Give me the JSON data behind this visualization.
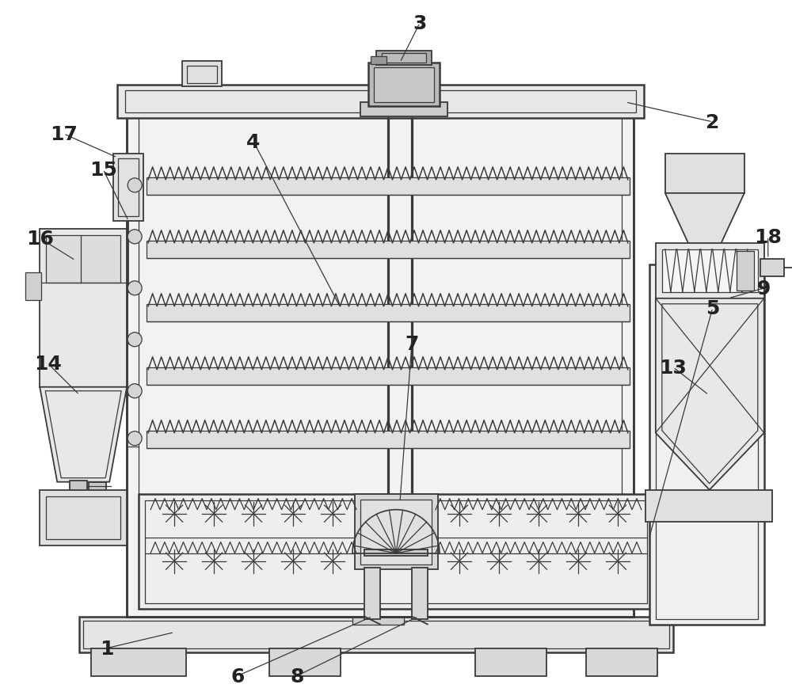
{
  "bg_color": "#ffffff",
  "lc": "#3a3a3a",
  "lw_main": 1.8,
  "lw_thin": 0.9,
  "lw_med": 1.3,
  "figsize": [
    10.0,
    8.7
  ],
  "dpi": 100
}
